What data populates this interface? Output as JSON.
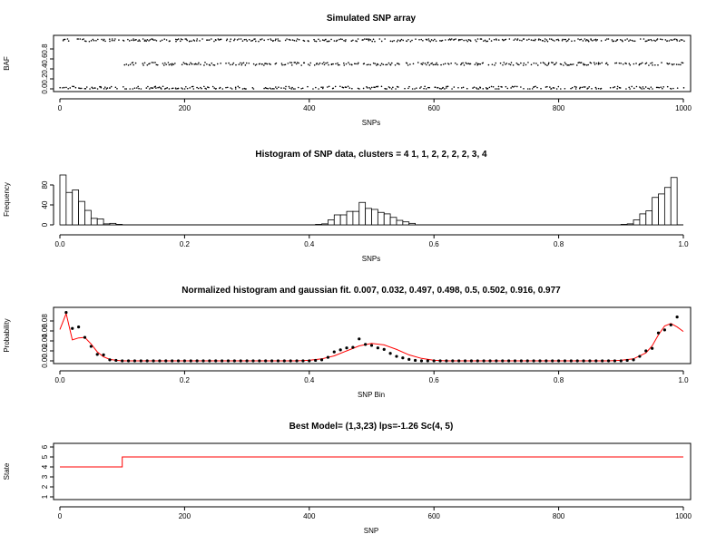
{
  "colors": {
    "accent": "#ff0000",
    "ink": "#000000"
  },
  "chart_data": [
    {
      "id": "baf",
      "type": "scatter",
      "title": "Simulated SNP array",
      "xlabel": "SNPs",
      "ylabel": "BAF",
      "xlim": [
        0,
        1000
      ],
      "ylim": [
        0,
        1
      ],
      "xticks": [
        0,
        200,
        400,
        600,
        800,
        1000
      ],
      "xtick_labels": [
        "0",
        "200",
        "400",
        "600",
        "800",
        "1000"
      ],
      "yticks": [
        0,
        0.2,
        0.4,
        0.6,
        0.8
      ],
      "ytick_labels": [
        "0.0",
        "0.2",
        "0.4",
        "0.6",
        "0.8"
      ],
      "clusters": [
        {
          "x_range": [
            0,
            1000
          ],
          "y": 0.02
        },
        {
          "x_range": [
            0,
            1000
          ],
          "y": 0.98
        },
        {
          "x_range": [
            100,
            1000
          ],
          "y": 0.5
        }
      ]
    },
    {
      "id": "hist",
      "type": "bar",
      "title": "Histogram of SNP data, clusters =  4   1, 1, 2, 2, 2, 2, 3, 4",
      "xlabel": "SNPs",
      "ylabel": "Frequency",
      "xlim": [
        0,
        1
      ],
      "ylim": [
        0,
        100
      ],
      "bin_width": 0.01,
      "xticks": [
        0,
        0.2,
        0.4,
        0.6,
        0.8,
        1.0
      ],
      "xtick_labels": [
        "0.0",
        "0.2",
        "0.4",
        "0.6",
        "0.8",
        "1.0"
      ],
      "yticks": [
        0,
        40,
        80
      ],
      "ytick_labels": [
        "0",
        "40",
        "80"
      ],
      "bins": [
        {
          "x": 0.0,
          "value": 100
        },
        {
          "x": 0.01,
          "value": 65
        },
        {
          "x": 0.02,
          "value": 70
        },
        {
          "x": 0.03,
          "value": 47
        },
        {
          "x": 0.04,
          "value": 29
        },
        {
          "x": 0.05,
          "value": 13
        },
        {
          "x": 0.06,
          "value": 12
        },
        {
          "x": 0.07,
          "value": 2
        },
        {
          "x": 0.08,
          "value": 3
        },
        {
          "x": 0.09,
          "value": 1
        },
        {
          "x": 0.41,
          "value": 1
        },
        {
          "x": 0.42,
          "value": 2
        },
        {
          "x": 0.43,
          "value": 10
        },
        {
          "x": 0.44,
          "value": 20
        },
        {
          "x": 0.45,
          "value": 20
        },
        {
          "x": 0.46,
          "value": 27
        },
        {
          "x": 0.47,
          "value": 27
        },
        {
          "x": 0.48,
          "value": 45
        },
        {
          "x": 0.49,
          "value": 33
        },
        {
          "x": 0.5,
          "value": 31
        },
        {
          "x": 0.51,
          "value": 25
        },
        {
          "x": 0.52,
          "value": 22
        },
        {
          "x": 0.53,
          "value": 15
        },
        {
          "x": 0.54,
          "value": 9
        },
        {
          "x": 0.55,
          "value": 6
        },
        {
          "x": 0.56,
          "value": 3
        },
        {
          "x": 0.9,
          "value": 1
        },
        {
          "x": 0.91,
          "value": 2
        },
        {
          "x": 0.92,
          "value": 10
        },
        {
          "x": 0.93,
          "value": 22
        },
        {
          "x": 0.94,
          "value": 28
        },
        {
          "x": 0.95,
          "value": 55
        },
        {
          "x": 0.96,
          "value": 62
        },
        {
          "x": 0.97,
          "value": 75
        },
        {
          "x": 0.98,
          "value": 95
        }
      ]
    },
    {
      "id": "gauss",
      "type": "line",
      "title": "Normalized histogram and gaussian fit.  0.007, 0.032, 0.497, 0.498, 0.5, 0.502, 0.916, 0.977",
      "xlabel": "SNP Bin",
      "ylabel": "Probability",
      "xlim": [
        0,
        1
      ],
      "ylim": [
        0,
        0.1
      ],
      "xticks": [
        0,
        0.2,
        0.4,
        0.6,
        0.8,
        1.0
      ],
      "xtick_labels": [
        "0.0",
        "0.2",
        "0.4",
        "0.6",
        "0.8",
        "1.0"
      ],
      "yticks": [
        0,
        0.02,
        0.04,
        0.06,
        0.08
      ],
      "ytick_labels": [
        "0.00",
        "0.02",
        "0.04",
        "0.06",
        "0.08"
      ],
      "points": [
        [
          0.01,
          0.097
        ],
        [
          0.02,
          0.065
        ],
        [
          0.03,
          0.068
        ],
        [
          0.04,
          0.047
        ],
        [
          0.05,
          0.029
        ],
        [
          0.06,
          0.013
        ],
        [
          0.07,
          0.012
        ],
        [
          0.08,
          0.002
        ],
        [
          0.09,
          0.001
        ],
        [
          0.1,
          0.0
        ],
        [
          0.11,
          0.0
        ],
        [
          0.12,
          0.0
        ],
        [
          0.13,
          0.0
        ],
        [
          0.14,
          0.0
        ],
        [
          0.15,
          0.0
        ],
        [
          0.16,
          0.0
        ],
        [
          0.17,
          0.0
        ],
        [
          0.18,
          0.0
        ],
        [
          0.19,
          0.0
        ],
        [
          0.2,
          0.0
        ],
        [
          0.21,
          0.0
        ],
        [
          0.22,
          0.0
        ],
        [
          0.23,
          0.0
        ],
        [
          0.24,
          0.0
        ],
        [
          0.25,
          0.0
        ],
        [
          0.26,
          0.0
        ],
        [
          0.27,
          0.0
        ],
        [
          0.28,
          0.0
        ],
        [
          0.29,
          0.0
        ],
        [
          0.3,
          0.0
        ],
        [
          0.31,
          0.0
        ],
        [
          0.32,
          0.0
        ],
        [
          0.33,
          0.0
        ],
        [
          0.34,
          0.0
        ],
        [
          0.35,
          0.0
        ],
        [
          0.36,
          0.0
        ],
        [
          0.37,
          0.0
        ],
        [
          0.38,
          0.0
        ],
        [
          0.39,
          0.0
        ],
        [
          0.4,
          0.0
        ],
        [
          0.41,
          0.001
        ],
        [
          0.42,
          0.002
        ],
        [
          0.43,
          0.007
        ],
        [
          0.44,
          0.018
        ],
        [
          0.45,
          0.022
        ],
        [
          0.46,
          0.026
        ],
        [
          0.47,
          0.027
        ],
        [
          0.48,
          0.044
        ],
        [
          0.49,
          0.033
        ],
        [
          0.5,
          0.031
        ],
        [
          0.51,
          0.026
        ],
        [
          0.52,
          0.023
        ],
        [
          0.53,
          0.015
        ],
        [
          0.54,
          0.009
        ],
        [
          0.55,
          0.006
        ],
        [
          0.56,
          0.003
        ],
        [
          0.57,
          0.001
        ],
        [
          0.58,
          0.0
        ],
        [
          0.59,
          0.0
        ],
        [
          0.6,
          0.0
        ],
        [
          0.61,
          0.0
        ],
        [
          0.62,
          0.0
        ],
        [
          0.63,
          0.0
        ],
        [
          0.64,
          0.0
        ],
        [
          0.65,
          0.0
        ],
        [
          0.66,
          0.0
        ],
        [
          0.67,
          0.0
        ],
        [
          0.68,
          0.0
        ],
        [
          0.69,
          0.0
        ],
        [
          0.7,
          0.0
        ],
        [
          0.71,
          0.0
        ],
        [
          0.72,
          0.0
        ],
        [
          0.73,
          0.0
        ],
        [
          0.74,
          0.0
        ],
        [
          0.75,
          0.0
        ],
        [
          0.76,
          0.0
        ],
        [
          0.77,
          0.0
        ],
        [
          0.78,
          0.0
        ],
        [
          0.79,
          0.0
        ],
        [
          0.8,
          0.0
        ],
        [
          0.81,
          0.0
        ],
        [
          0.82,
          0.0
        ],
        [
          0.83,
          0.0
        ],
        [
          0.84,
          0.0
        ],
        [
          0.85,
          0.0
        ],
        [
          0.86,
          0.0
        ],
        [
          0.87,
          0.0
        ],
        [
          0.88,
          0.0
        ],
        [
          0.89,
          0.0
        ],
        [
          0.9,
          0.0
        ],
        [
          0.91,
          0.001
        ],
        [
          0.92,
          0.002
        ],
        [
          0.93,
          0.009
        ],
        [
          0.94,
          0.02
        ],
        [
          0.95,
          0.025
        ],
        [
          0.96,
          0.056
        ],
        [
          0.97,
          0.062
        ],
        [
          0.98,
          0.072
        ],
        [
          0.99,
          0.088
        ]
      ],
      "fit_line": [
        [
          0.0,
          0.063
        ],
        [
          0.01,
          0.095
        ],
        [
          0.02,
          0.042
        ],
        [
          0.03,
          0.046
        ],
        [
          0.04,
          0.047
        ],
        [
          0.05,
          0.034
        ],
        [
          0.06,
          0.018
        ],
        [
          0.07,
          0.008
        ],
        [
          0.08,
          0.003
        ],
        [
          0.09,
          0.001
        ],
        [
          0.1,
          0.0
        ],
        [
          0.38,
          0.0
        ],
        [
          0.4,
          0.001
        ],
        [
          0.42,
          0.004
        ],
        [
          0.44,
          0.01
        ],
        [
          0.46,
          0.02
        ],
        [
          0.48,
          0.03
        ],
        [
          0.5,
          0.035
        ],
        [
          0.52,
          0.032
        ],
        [
          0.54,
          0.023
        ],
        [
          0.56,
          0.012
        ],
        [
          0.58,
          0.005
        ],
        [
          0.6,
          0.001
        ],
        [
          0.62,
          0.0
        ],
        [
          0.88,
          0.0
        ],
        [
          0.9,
          0.001
        ],
        [
          0.92,
          0.004
        ],
        [
          0.94,
          0.016
        ],
        [
          0.95,
          0.03
        ],
        [
          0.96,
          0.052
        ],
        [
          0.97,
          0.07
        ],
        [
          0.98,
          0.075
        ],
        [
          0.99,
          0.068
        ],
        [
          1.0,
          0.059
        ]
      ]
    },
    {
      "id": "state",
      "type": "line",
      "title": "Best Model= (1,3,23) lps=-1.26 Sc(4, 5)",
      "xlabel": "SNP",
      "ylabel": "State",
      "xlim": [
        0,
        1000
      ],
      "ylim": [
        1,
        6
      ],
      "xticks": [
        0,
        200,
        400,
        600,
        800,
        1000
      ],
      "xtick_labels": [
        "0",
        "200",
        "400",
        "600",
        "800",
        "1000"
      ],
      "yticks": [
        1,
        2,
        3,
        4,
        5,
        6
      ],
      "ytick_labels": [
        "1",
        "2",
        "3",
        "4",
        "5",
        "6"
      ],
      "line": [
        [
          0,
          4
        ],
        [
          100,
          4
        ],
        [
          100,
          5
        ],
        [
          1000,
          5
        ]
      ]
    }
  ]
}
